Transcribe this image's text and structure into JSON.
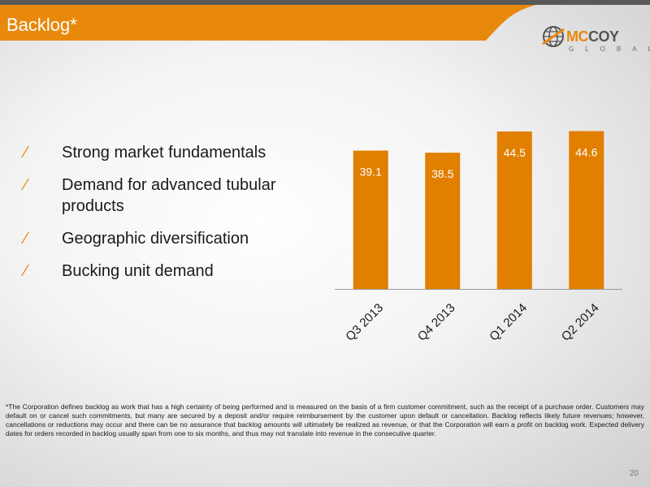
{
  "slide": {
    "title": "Backlog*",
    "page_number": "20",
    "accent_color": "#e8890c"
  },
  "logo": {
    "name_part1": "MC",
    "name_part2": "COY",
    "subtitle": "GLOBAL",
    "icon": "globe-icon"
  },
  "bullets": [
    "Strong market fundamentals",
    "Demand for advanced tubular products",
    "Geographic diversification",
    "Bucking unit demand"
  ],
  "bullet_marker": "⁄",
  "chart_data": {
    "type": "bar",
    "categories": [
      "Q3 2013",
      "Q4 2013",
      "Q1 2014",
      "Q2 2014"
    ],
    "values": [
      39.1,
      38.5,
      44.5,
      44.6
    ],
    "title": "",
    "xlabel": "",
    "ylabel": "",
    "ylim": [
      0,
      50
    ],
    "bar_color": "#e07f00",
    "data_label_color": "#ffffff",
    "grid": false,
    "legend": "none"
  },
  "footnote": "*The Corporation defines backlog as work that has a high certainty of being performed and is measured on the basis of a firm customer commitment, such as the receipt of a purchase order. Customers may default on or cancel such commitments, but many are secured by a deposit and/or require reimbursement by the customer upon default or cancellation. Backlog reflects likely future revenues; however, cancellations or reductions may occur and there can be no assurance that backlog amounts will ultimately be realized as revenue, or that the Corporation will earn a profit on backlog work. Expected delivery dates for orders recorded in backlog usually span from one to six months, and thus may not translate into revenue in the consecutive quarter."
}
